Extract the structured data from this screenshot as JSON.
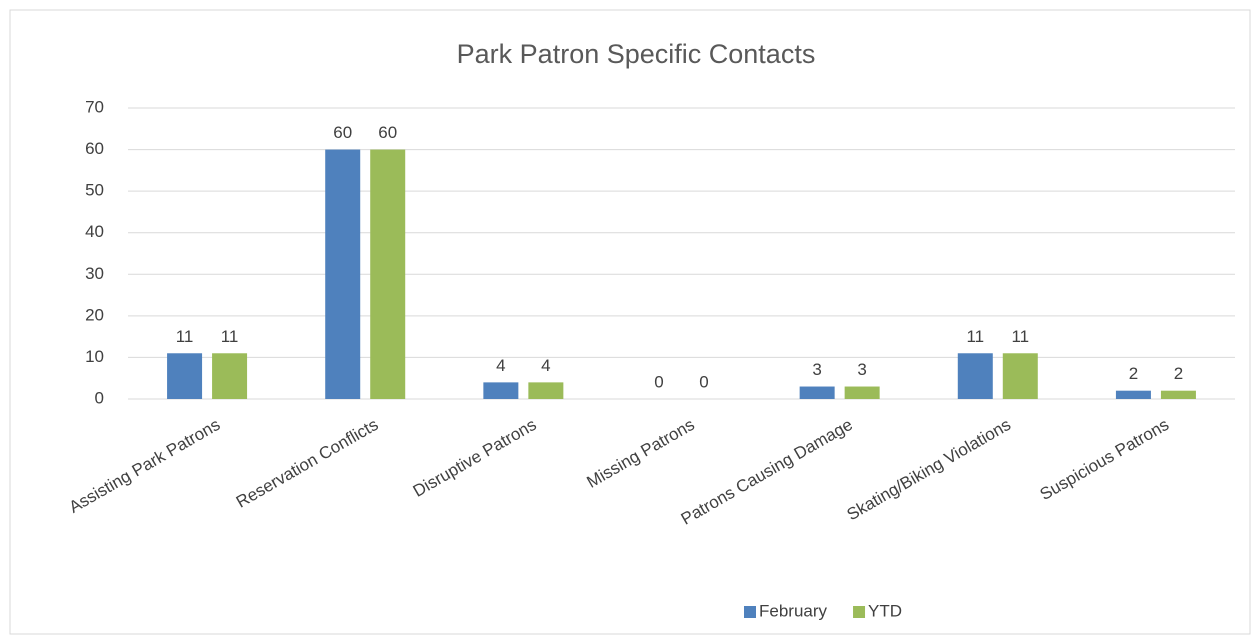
{
  "chart_data": {
    "type": "bar",
    "title": "Park Patron Specific Contacts",
    "categories": [
      "Assisting Park Patrons",
      "Reservation Conflicts",
      "Disruptive Patrons",
      "Missing Patrons",
      "Patrons Causing Damage",
      "Skating/Biking Violations",
      "Suspicious Patrons"
    ],
    "series": [
      {
        "name": "February",
        "color": "#4f81bd",
        "values": [
          11,
          60,
          4,
          0,
          3,
          11,
          2
        ]
      },
      {
        "name": "YTD",
        "color": "#9bbb59",
        "values": [
          11,
          60,
          4,
          0,
          3,
          11,
          2
        ]
      }
    ],
    "ylim": [
      0,
      70
    ],
    "yticks": [
      0,
      10,
      20,
      30,
      40,
      50,
      60,
      70
    ],
    "grid": true,
    "legend": "bottom"
  }
}
